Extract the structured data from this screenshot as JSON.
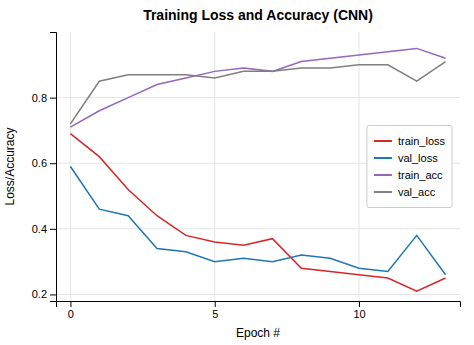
{
  "chart_data": {
    "type": "line",
    "title": "Training Loss and Accuracy (CNN)",
    "xlabel": "Epoch #",
    "ylabel": "Loss/Accuracy",
    "x": [
      0,
      1,
      2,
      3,
      4,
      5,
      6,
      7,
      8,
      9,
      10,
      11,
      12,
      13
    ],
    "series": [
      {
        "name": "train_loss",
        "color": "#d62728",
        "values": [
          0.69,
          0.62,
          0.52,
          0.44,
          0.38,
          0.36,
          0.35,
          0.37,
          0.28,
          0.27,
          0.26,
          0.25,
          0.21,
          0.25
        ]
      },
      {
        "name": "val_loss",
        "color": "#1f77b4",
        "values": [
          0.59,
          0.46,
          0.44,
          0.34,
          0.33,
          0.3,
          0.31,
          0.3,
          0.32,
          0.31,
          0.28,
          0.27,
          0.38,
          0.26
        ]
      },
      {
        "name": "train_acc",
        "color": "#9467bd",
        "values": [
          0.71,
          0.76,
          0.8,
          0.84,
          0.86,
          0.88,
          0.89,
          0.88,
          0.91,
          0.92,
          0.93,
          0.94,
          0.95,
          0.92
        ]
      },
      {
        "name": "val_acc",
        "color": "#7f7f7f",
        "values": [
          0.72,
          0.85,
          0.87,
          0.87,
          0.87,
          0.86,
          0.88,
          0.88,
          0.89,
          0.89,
          0.9,
          0.9,
          0.85,
          0.91
        ]
      }
    ],
    "xlim": [
      -0.5,
      13.5
    ],
    "ylim": [
      0.18,
      1.0
    ],
    "xticks": [
      0,
      5,
      10
    ],
    "yticks": [
      0.2,
      0.4,
      0.6,
      0.8
    ],
    "grid": true,
    "legend": "center right"
  }
}
